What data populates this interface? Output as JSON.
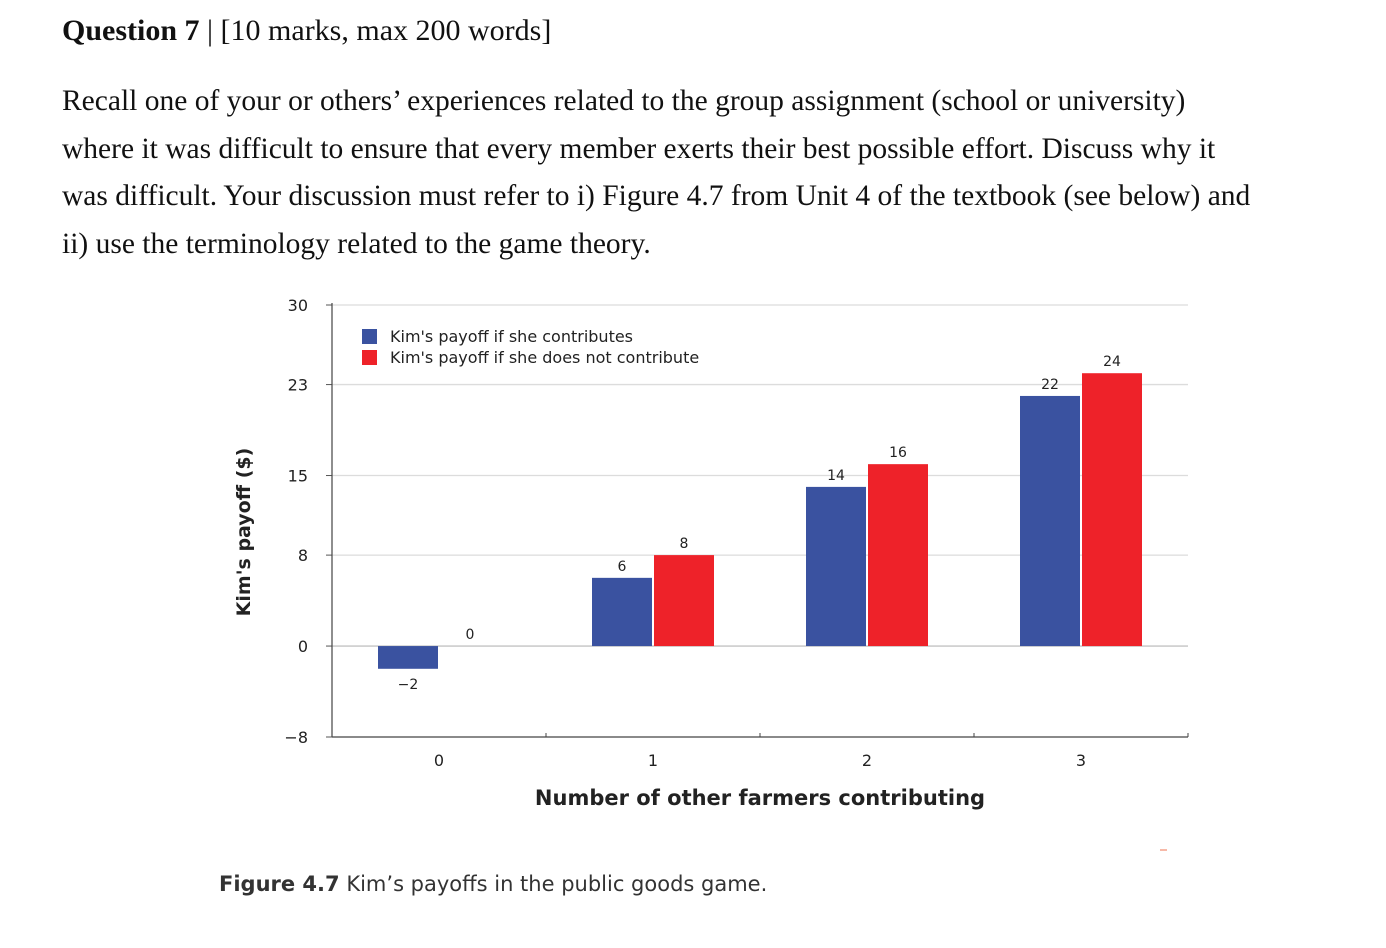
{
  "question": {
    "number": "Question 7",
    "separator": "|",
    "marks": "[10 marks, max 200 words]"
  },
  "prompt_lines": [
    "Recall one of your or others’ experiences related to the group assignment (school or university)",
    "where it was difficult to ensure that every member exerts their best possible effort. Discuss why it",
    "was difficult. Your discussion must refer to i) Figure 4.7 from Unit 4 of the textbook (see below) and",
    "ii) use the terminology related to the game theory."
  ],
  "chart_data": {
    "type": "bar",
    "categories": [
      "0",
      "1",
      "2",
      "3"
    ],
    "series": [
      {
        "name": "Kim's payoff if she contributes",
        "color": "#3a52a0",
        "values": [
          -2,
          6,
          14,
          22
        ],
        "labels": [
          "−2",
          "6",
          "14",
          "22"
        ]
      },
      {
        "name": "Kim's payoff if she does not contribute",
        "color": "#ee2229",
        "values": [
          0,
          8,
          16,
          24
        ],
        "labels": [
          "0",
          "8",
          "16",
          "24"
        ]
      }
    ],
    "xlabel": "Number of other farmers contributing",
    "ylabel": "Kim's payoff ($)",
    "yticks": [
      -8,
      0,
      8,
      15,
      23,
      30
    ],
    "ytick_labels": [
      "−8",
      "0",
      "8",
      "15",
      "23",
      "30"
    ],
    "ylim": [
      -8,
      30
    ],
    "grid": true,
    "legend_position": "top-left"
  },
  "caption": {
    "label": "Figure 4.7",
    "text": "Kim’s payoffs in the public goods game."
  }
}
